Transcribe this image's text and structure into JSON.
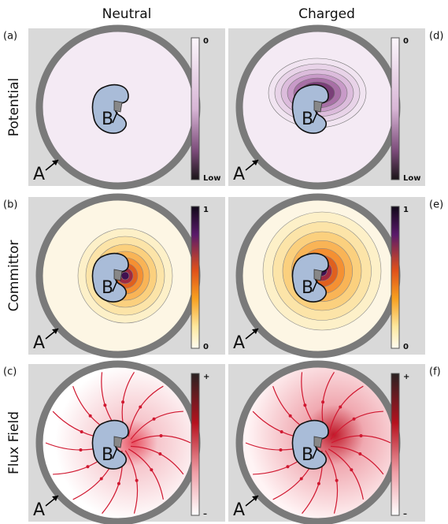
{
  "column_headers": [
    "Neutral",
    "Charged"
  ],
  "row_labels": [
    "Potential",
    "Committor",
    "Flux Field"
  ],
  "panels": [
    {
      "letter": "(a)",
      "colorbar_top": "0",
      "colorbar_bottom": "Low",
      "label_a": "A",
      "label_b": "B"
    },
    {
      "letter": "(d)",
      "colorbar_top": "0",
      "colorbar_bottom": "Low",
      "label_a": "A",
      "label_b": "B"
    },
    {
      "letter": "(b)",
      "colorbar_top": "1",
      "colorbar_bottom": "0",
      "label_a": "A",
      "label_b": "B"
    },
    {
      "letter": "(e)",
      "colorbar_top": "1",
      "colorbar_bottom": "0",
      "label_a": "A",
      "label_b": "B"
    },
    {
      "letter": "(c)",
      "colorbar_top": "+",
      "colorbar_bottom": "–",
      "label_a": "A",
      "label_b": "B"
    },
    {
      "letter": "(f)",
      "colorbar_top": "+",
      "colorbar_bottom": "–",
      "label_a": "A",
      "label_b": "B"
    }
  ]
}
